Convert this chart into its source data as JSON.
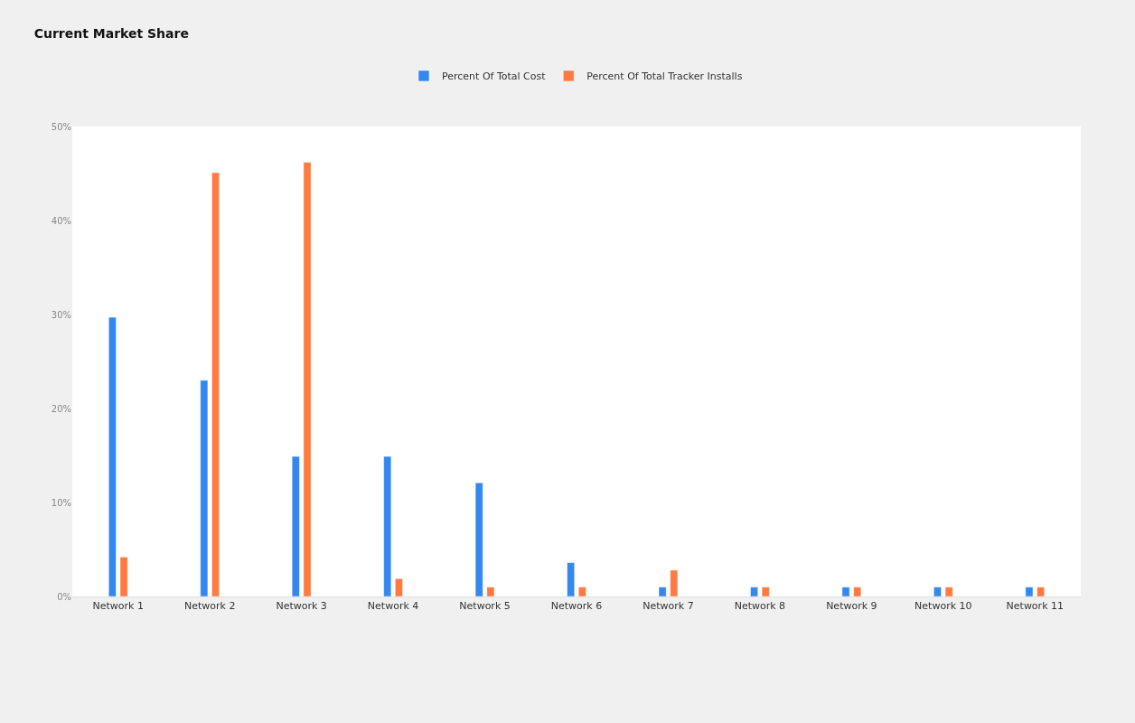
{
  "chart_data": {
    "type": "bar",
    "title": "Current Market Share",
    "categories": [
      "Network 1",
      "Network 2",
      "Network 3",
      "Network 4",
      "Network 5",
      "Network 6",
      "Network 7",
      "Network 8",
      "Network 9",
      "Network 10",
      "Network 11"
    ],
    "series": [
      {
        "name": "Percent Of Total Cost",
        "color": "#3388f0",
        "values": [
          29.7,
          23.0,
          14.9,
          14.9,
          12.1,
          3.6,
          1.0,
          1.0,
          1.0,
          1.0,
          1.0
        ]
      },
      {
        "name": "Percent Of Total Tracker Installs",
        "color": "#ff7a40",
        "values": [
          4.2,
          45.1,
          46.2,
          1.9,
          1.0,
          1.0,
          2.8,
          1.0,
          1.0,
          1.0,
          1.0
        ]
      }
    ],
    "ylim": [
      0,
      50
    ],
    "yticks": [
      {
        "value": 0,
        "label": "0%"
      },
      {
        "value": 10,
        "label": "10%"
      },
      {
        "value": 20,
        "label": "20%"
      },
      {
        "value": 30,
        "label": "30%"
      },
      {
        "value": 40,
        "label": "40%"
      },
      {
        "value": 50,
        "label": "50%"
      }
    ],
    "grid": false,
    "legend": "top"
  }
}
